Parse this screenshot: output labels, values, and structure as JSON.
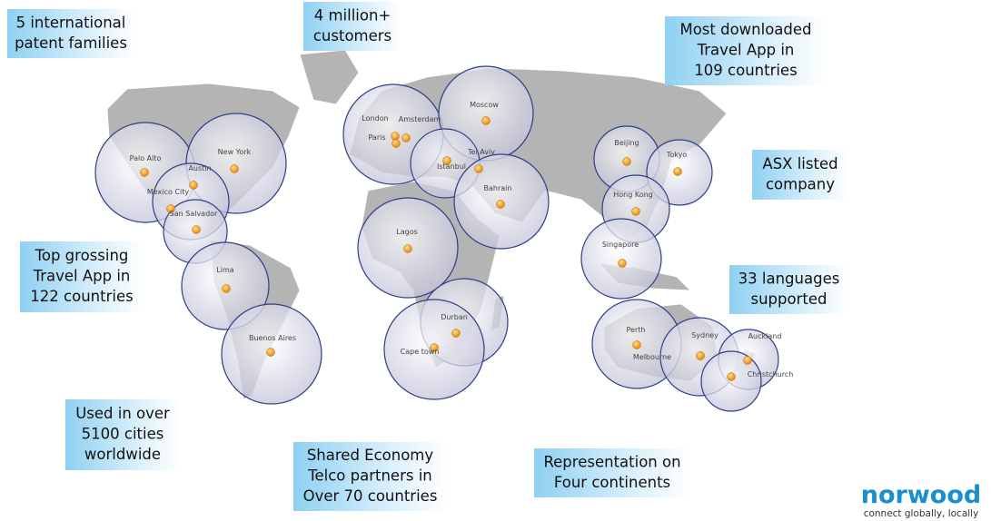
{
  "callouts": [
    {
      "lines": [
        "5 international",
        "patent families"
      ]
    },
    {
      "lines": [
        "4 million+",
        "customers"
      ]
    },
    {
      "lines": [
        "Most downloaded",
        "Travel App in",
        "109 countries"
      ]
    },
    {
      "lines": [
        "ASX listed",
        "company"
      ]
    },
    {
      "lines": [
        "Top grossing",
        "Travel App in",
        "122 countries"
      ]
    },
    {
      "lines": [
        "33 languages",
        "supported"
      ]
    },
    {
      "lines": [
        "Used in over",
        "5100 cities",
        "worldwide"
      ]
    },
    {
      "lines": [
        "Shared Economy",
        "Telco partners in",
        "Over 70 countries"
      ]
    },
    {
      "lines": [
        "Representation on",
        "Four continents"
      ]
    }
  ],
  "cities": [
    "Palo Alto",
    "New York",
    "Austin",
    "Mexico City",
    "San Salvador",
    "Lima",
    "Buenos Aires",
    "London",
    "Amsterdam",
    "Paris",
    "Moscow",
    "Istanbul",
    "Tel Aviv",
    "Bahrain",
    "Lagos",
    "Durban",
    "Cape town",
    "Beijing",
    "Tokyo",
    "Hong Kong",
    "Singapore",
    "Perth",
    "Melbourne",
    "Sydney",
    "Auckland",
    "Christchurch"
  ],
  "logo": {
    "name": "norwood",
    "tagline": "connect globally, locally"
  }
}
